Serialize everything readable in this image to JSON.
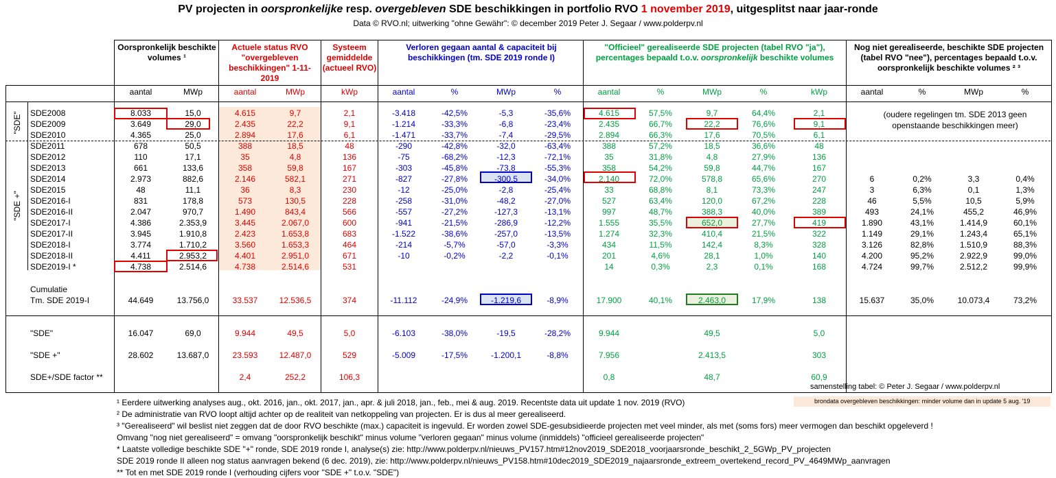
{
  "title": {
    "p1": "PV projecten in ",
    "p2": "oorspronkelijke",
    "p3": " resp. ",
    "p4": "overgebleven",
    "p5": " SDE beschikkingen in portfolio RVO ",
    "p6": "1 november 2019",
    "p7": ", uitgesplitst naar jaar-ronde"
  },
  "subtitle": "Data © RVO.nl; uitwerking \"ohne Gewähr\": © december 2019 Peter J. Segaar / www.polderpv.nl",
  "headers": {
    "orig": "Oorspronkelijk beschikte volumes ¹",
    "actueel": "Actuele status RVO \"overgebleven beschikkingen\" 1-11-2019",
    "systeem": "Systeem gemiddelde (actueel RVO)",
    "verloren": "Verloren gegaan aantal & capaciteit bij beschikkingen (tm. SDE 2019 ronde I)",
    "officieel_a": "\"Officieel\" gerealiseerde SDE projecten (tabel RVO \"ja\"), percentages bepaald t.o.v. ",
    "officieel_b": "oorspronkelijk",
    "officieel_c": " beschikte volumes",
    "nog": "Nog niet gerealiseerde, beschikte SDE projecten (tabel RVO \"nee\"), percentages bepaald t.o.v. oorspronkelijk beschikte volumes ² ³"
  },
  "subheaders": [
    "aantal",
    "MWp",
    "aantal",
    "MWp",
    "kWp",
    "aantal",
    "%",
    "MWp",
    "%",
    "aantal",
    "%",
    "MWp",
    "%",
    "kWp",
    "aantal",
    "%",
    "MWp",
    "%"
  ],
  "group_labels": {
    "sde": "\"SDE\"",
    "sdeplus": "\"SDE +\""
  },
  "rows": [
    {
      "label": "SDE2008",
      "v": [
        "8.033",
        "15,0",
        "4.615",
        "9,7",
        "2,1",
        "-3.418",
        "-42,5%",
        "-5,3",
        "-35,6%",
        "4.615",
        "57,5%",
        "9,7",
        "64,4%",
        "2,1",
        "",
        "",
        "",
        ""
      ]
    },
    {
      "label": "SDE2009",
      "v": [
        "3.649",
        "29,0",
        "2.435",
        "22,2",
        "9,1",
        "-1.214",
        "-33,3%",
        "-6,8",
        "-23,4%",
        "2.435",
        "66,7%",
        "22,2",
        "76,6%",
        "9,1",
        "",
        "",
        "",
        ""
      ]
    },
    {
      "label": "SDE2010",
      "v": [
        "4.365",
        "25,0",
        "2.894",
        "17,6",
        "6,1",
        "-1.471",
        "-33,7%",
        "-7,4",
        "-29,5%",
        "2.894",
        "66,3%",
        "17,6",
        "70,5%",
        "6,1",
        "",
        "",
        "",
        ""
      ]
    },
    {
      "label": "SDE2011",
      "v": [
        "678",
        "50,5",
        "388",
        "18,5",
        "48",
        "-290",
        "-42,8%",
        "-32,0",
        "-63,4%",
        "388",
        "57,2%",
        "18,5",
        "36,6%",
        "48",
        "",
        "",
        "",
        ""
      ]
    },
    {
      "label": "SDE2012",
      "v": [
        "110",
        "17,1",
        "35",
        "4,8",
        "136",
        "-75",
        "-68,2%",
        "-12,3",
        "-72,1%",
        "35",
        "31,8%",
        "4,8",
        "27,9%",
        "136",
        "",
        "",
        "",
        ""
      ]
    },
    {
      "label": "SDE2013",
      "v": [
        "661",
        "133,6",
        "358",
        "59,8",
        "167",
        "-303",
        "-45,8%",
        "-73,8",
        "-55,3%",
        "358",
        "54,2%",
        "59,8",
        "44,7%",
        "167",
        "",
        "",
        "",
        ""
      ]
    },
    {
      "label": "SDE2014",
      "v": [
        "2.973",
        "882,6",
        "2.146",
        "582,1",
        "271",
        "-827",
        "-27,8%",
        "-300,5",
        "-34,0%",
        "2.140",
        "72,0%",
        "578,8",
        "65,6%",
        "270",
        "6",
        "0,2%",
        "3,3",
        "0,4%"
      ]
    },
    {
      "label": "SDE2015",
      "v": [
        "48",
        "11,1",
        "36",
        "8,3",
        "230",
        "-12",
        "-25,0%",
        "-2,8",
        "-25,4%",
        "33",
        "68,8%",
        "8,1",
        "73,3%",
        "247",
        "3",
        "6,3%",
        "0,1",
        "1,3%"
      ]
    },
    {
      "label": "SDE2016-I",
      "v": [
        "831",
        "178,8",
        "573",
        "130,5",
        "228",
        "-258",
        "-31,0%",
        "-48,2",
        "-27,0%",
        "527",
        "63,4%",
        "120,0",
        "67,2%",
        "228",
        "46",
        "5,5%",
        "10,5",
        "5,9%"
      ]
    },
    {
      "label": "SDE2016-II",
      "v": [
        "2.047",
        "970,7",
        "1.490",
        "843,4",
        "566",
        "-557",
        "-27,2%",
        "-127,3",
        "-13,1%",
        "997",
        "48,7%",
        "388,3",
        "40,0%",
        "389",
        "493",
        "24,1%",
        "455,2",
        "46,9%"
      ]
    },
    {
      "label": "SDE2017-I",
      "v": [
        "4.386",
        "2.353,9",
        "3.445",
        "2.067,0",
        "600",
        "-941",
        "-21,5%",
        "-286,9",
        "-12,2%",
        "1.555",
        "35,5%",
        "652,0",
        "27,7%",
        "419",
        "1.890",
        "43,1%",
        "1.414,9",
        "60,1%"
      ]
    },
    {
      "label": "SDE2017-II",
      "v": [
        "3.945",
        "1.910,8",
        "2.423",
        "1.653,8",
        "683",
        "-1.522",
        "-38,6%",
        "-257,0",
        "-13,5%",
        "1.274",
        "32,3%",
        "410,4",
        "21,5%",
        "322",
        "1.149",
        "29,1%",
        "1.243,4",
        "65,1%"
      ]
    },
    {
      "label": "SDE2018-I",
      "v": [
        "3.774",
        "1.710,2",
        "3.560",
        "1.653,3",
        "464",
        "-214",
        "-5,7%",
        "-57,0",
        "-3,3%",
        "434",
        "11,5%",
        "142,4",
        "8,3%",
        "328",
        "3.126",
        "82,8%",
        "1.510,9",
        "88,3%"
      ]
    },
    {
      "label": "SDE2018-II",
      "v": [
        "4.411",
        "2.953,2",
        "4.401",
        "2.951,0",
        "671",
        "-10",
        "-0,2%",
        "-2,2",
        "-0,1%",
        "201",
        "4,6%",
        "28,1",
        "1,0%",
        "140",
        "4.200",
        "95,2%",
        "2.922,9",
        "99,0%"
      ]
    },
    {
      "label": "SDE2019-I *",
      "v": [
        "4.738",
        "2.514,6",
        "4.738",
        "2.514,6",
        "531",
        "",
        "",
        "",
        "",
        "14",
        "0,3%",
        "2,3",
        "0,1%",
        "168",
        "4.724",
        "99,7%",
        "2.512,2",
        "99,9%"
      ]
    }
  ],
  "oudere_note": "(oudere regelingen tm. SDE 2013 geen openstaande beschikkingen meer)",
  "cumulatie": {
    "label1": "Cumulatie",
    "label2": "Tm. SDE 2019-I",
    "v": [
      "44.649",
      "13.756,0",
      "33.537",
      "12.536,5",
      "374",
      "-11.112",
      "-24,9%",
      "-1.219,6",
      "-8,9%",
      "17.900",
      "40,1%",
      "2.463,0",
      "17,9%",
      "138",
      "15.637",
      "35,0%",
      "10.073,4",
      "73,2%"
    ]
  },
  "summary": [
    {
      "label": "\"SDE\"",
      "v": [
        "16.047",
        "69,0",
        "9.944",
        "49,5",
        "5,0",
        "-6.103",
        "-38,0%",
        "-19,5",
        "-28,2%",
        "9.944",
        "",
        "49,5",
        "",
        "5,0",
        "",
        "",
        "",
        ""
      ]
    },
    {
      "label": "\"SDE +\"",
      "v": [
        "28.602",
        "13.687,0",
        "23.593",
        "12.487,0",
        "529",
        "-5.009",
        "-17,5%",
        "-1.200,1",
        "-8,8%",
        "7.956",
        "",
        "2.413,5",
        "",
        "303",
        "",
        "",
        "",
        ""
      ]
    },
    {
      "label": "SDE+/SDE factor **",
      "v": [
        "",
        "",
        "2,4",
        "252,2",
        "106,3",
        "",
        "",
        "",
        "",
        "0,8",
        "",
        "48,7",
        "",
        "60,9",
        "",
        "",
        "",
        ""
      ]
    }
  ],
  "credit": "samenstelling tabel: © Peter J. Segaar / www.polderpv.nl",
  "legend_note": "brondata overgebleven beschikkingen: minder volume dan in update 5 aug. '19",
  "footnotes": [
    "¹ Eerdere uitwerking analyses aug., okt. 2016, jan., okt.  2017, jan., apr. & juli 2018, jan., feb., mei & aug. 2019. Recentste data uit update 1 nov. 2019 (RVO)",
    "² De administratie van RVO loopt altijd achter op de realiteit van netkoppeling van projecten. Er is dus al meer gerealiseerd.",
    "³ \"Gerealiseerd\" wil beslist niet zeggen dat de door RVO beschikte (max.) capaciteit is ingevuld. Er worden zowel SDE-gesubsidieerde projecten met veel minder, als met (soms fors) meer  vermogen dan beschikt opgeleverd !",
    "Omvang \"nog niet gerealiseerd\" = omvang \"oorspronkelijk beschikt\" minus volume \"verloren gegaan\" minus volume (inmiddels) \"officieel gerealiseerde projecten\"",
    "* Laatste volledige beschikte SDE \"+\" ronde, SDE 2019 ronde I, analyse(s) zie: http://www.polderpv.nl/nieuws_PV157.htm#12nov2019_SDE2018_voorjaarsronde_beschikt_2_5GWp_PV_projecten",
    "SDE 2019 ronde II alleen nog status aanvragen bekend (6 dec. 2019), zie: http://www.polderpv.nl/nieuws_PV158.htm#10dec2019_SDE2019_najaarsronde_extreem_overtekend_record_PV_4649MWp_aanvragen",
    "** Tot en met SDE 2019 ronde I (verhouding cijfers voor \"SDE +\" t.o.v. \"SDE\")"
  ],
  "colors": {
    "red": "#e00000",
    "blue": "#0000cc",
    "green": "#00a040",
    "shade": "#fde9d9"
  }
}
